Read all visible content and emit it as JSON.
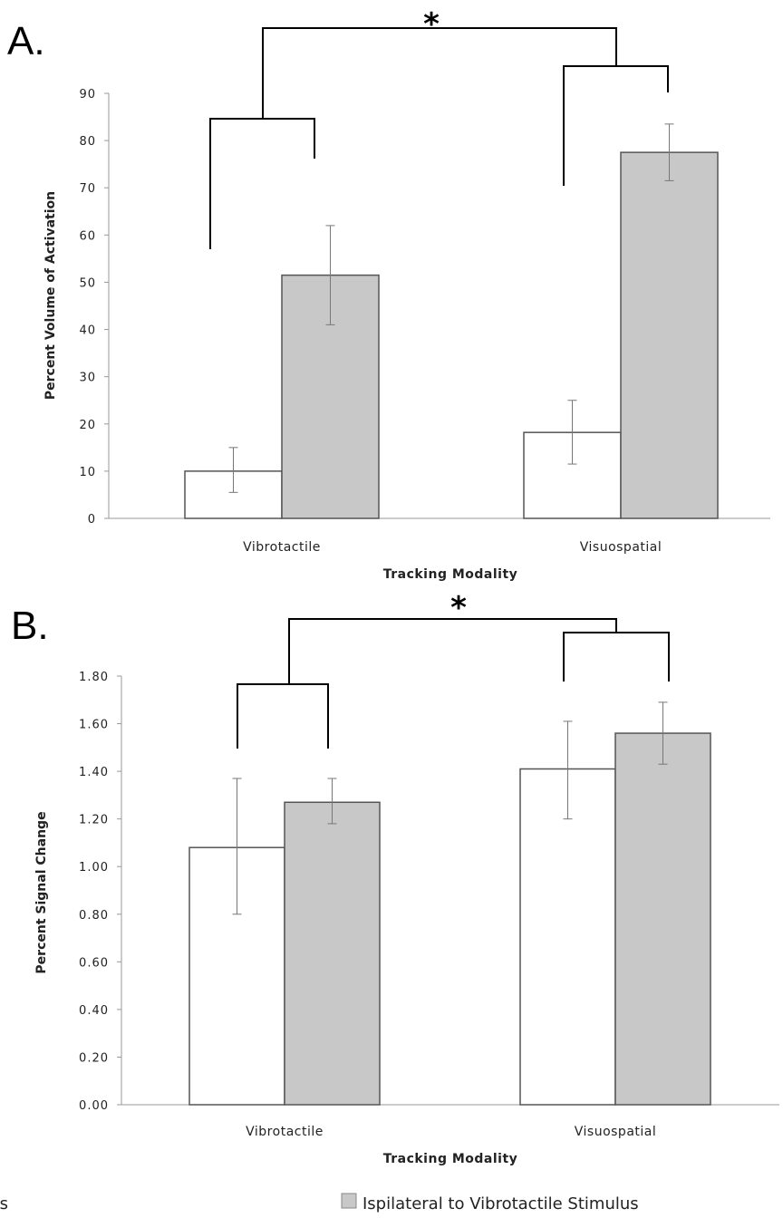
{
  "colors": {
    "contralateral_fill": "#ffffff",
    "ipsilateral_fill": "#c8c8c8",
    "bar_stroke": "#555555",
    "axis": "#999999",
    "bracket": "#000000"
  },
  "legend": {
    "contralateral_label": "Contralateral to Vibrotactile Stimulus",
    "ipsilateral_label": "Ispilateral to Vibrotactile Stimulus"
  },
  "chart_data": [
    {
      "type": "bar",
      "panel_label": "A.",
      "categories": [
        "Vibrotactile",
        "Visuospatial"
      ],
      "series": [
        {
          "name": "Contralateral to Vibrotactile Stimulus",
          "values": [
            10,
            18.2
          ],
          "err_low": [
            5.5,
            11.5
          ],
          "err_high": [
            15,
            25
          ]
        },
        {
          "name": "Ispilateral to Vibrotactile Stimulus",
          "values": [
            51.5,
            77.5
          ],
          "err_low": [
            41,
            71.5
          ],
          "err_high": [
            62,
            83.5
          ]
        }
      ],
      "xlabel": "Tracking Modality",
      "ylabel": "Percent Volume of Activation",
      "ylim": [
        0,
        90
      ],
      "yticks": [
        "0",
        "10",
        "20",
        "30",
        "40",
        "50",
        "60",
        "70",
        "80",
        "90"
      ],
      "significance": "*",
      "grid": false,
      "legend_position": "bottom"
    },
    {
      "type": "bar",
      "panel_label": "B.",
      "categories": [
        "Vibrotactile",
        "Visuospatial"
      ],
      "series": [
        {
          "name": "Contralateral to Vibrotactile Stimulus",
          "values": [
            1.08,
            1.41
          ],
          "err_low": [
            0.8,
            1.2
          ],
          "err_high": [
            1.37,
            1.61
          ]
        },
        {
          "name": "Ispilateral to Vibrotactile Stimulus",
          "values": [
            1.27,
            1.56
          ],
          "err_low": [
            1.18,
            1.43
          ],
          "err_high": [
            1.37,
            1.69
          ]
        }
      ],
      "xlabel": "Tracking Modality",
      "ylabel": "Percent Signal Change",
      "ylim": [
        0,
        1.8
      ],
      "yticks": [
        "0.00",
        "0.20",
        "0.40",
        "0.60",
        "0.80",
        "1.00",
        "1.20",
        "1.40",
        "1.60",
        "1.80"
      ],
      "significance": "*",
      "grid": false,
      "legend_position": "bottom"
    }
  ]
}
